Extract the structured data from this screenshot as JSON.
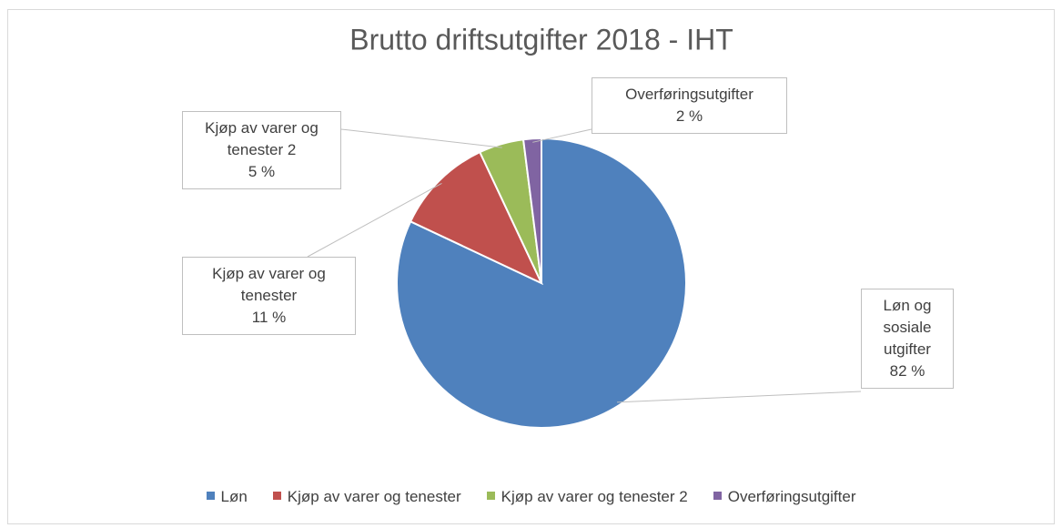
{
  "chart_data": {
    "type": "pie",
    "title": "Brutto driftsutgifter 2018 - IHT",
    "categories": [
      "Løn",
      "Kjøp av varer og tenester",
      "Kjøp av varer og tenester 2",
      "Overføringsutgifter"
    ],
    "data_label_names": [
      "Løn og sosiale utgifter",
      "Kjøp av varer og tenester",
      "Kjøp av varer og tenester 2",
      "Overføringsutgifter"
    ],
    "values": [
      82,
      11,
      5,
      2
    ],
    "value_labels": [
      "82 %",
      "11 %",
      "5 %",
      "2 %"
    ],
    "colors": [
      "#4f81bd",
      "#c0504d",
      "#9bbb59",
      "#8064a2"
    ],
    "legend": "bottom"
  }
}
